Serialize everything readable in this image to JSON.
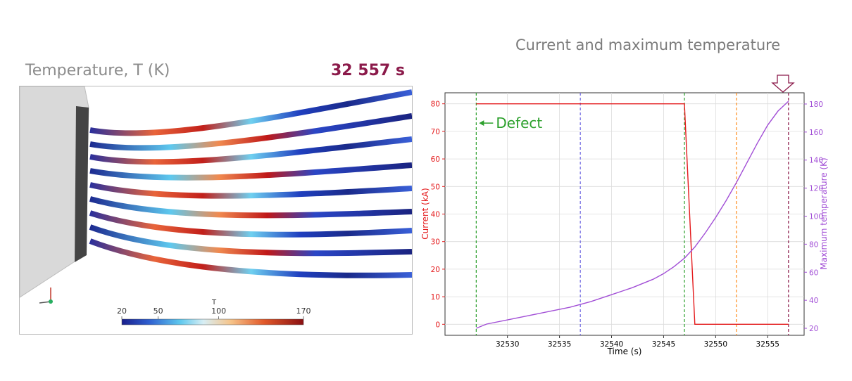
{
  "simulation": {
    "title": "Temperature, T (K)",
    "time_label": "32 557 s",
    "colorbar": {
      "label": "T",
      "ticks": [
        20,
        50,
        100,
        170
      ],
      "range": [
        20,
        170
      ],
      "colormap": "turbo-like (blue to red)"
    }
  },
  "chart_title": "Current and maximum temperature",
  "chart_data": {
    "type": "line",
    "title": "Current and maximum temperature",
    "xlabel": "Time (s)",
    "ylabel_left": "Current (kA)",
    "ylabel_right": "Maximum temperature (K)",
    "xlim": [
      32524,
      32558.5
    ],
    "ylim_left": [
      -4,
      84
    ],
    "ylim_right": [
      15,
      188
    ],
    "xticks": [
      32530,
      32535,
      32540,
      32545,
      32550,
      32555
    ],
    "yticks_left": [
      0,
      10,
      20,
      30,
      40,
      50,
      60,
      70,
      80
    ],
    "yticks_right": [
      20,
      40,
      60,
      80,
      100,
      120,
      140,
      160,
      180
    ],
    "grid": true,
    "series": [
      {
        "name": "Current",
        "axis": "left",
        "color": "#e41a1c",
        "x": [
          32527,
          32547,
          32548,
          32557
        ],
        "y": [
          80,
          80,
          0,
          0
        ]
      },
      {
        "name": "Maximum temperature",
        "axis": "right",
        "color": "#a24fd6",
        "x": [
          32527,
          32528,
          32530,
          32532,
          32534,
          32536,
          32538,
          32540,
          32542,
          32544,
          32545,
          32546,
          32547,
          32548,
          32549,
          32550,
          32551,
          32552,
          32553,
          32554,
          32555,
          32556,
          32557
        ],
        "y": [
          20,
          23,
          26,
          29,
          32,
          35,
          39,
          44,
          49,
          55,
          59,
          64,
          70,
          78,
          88,
          99,
          111,
          124,
          138,
          152,
          165,
          175,
          182
        ]
      }
    ],
    "vlines": [
      {
        "x": 32527,
        "color": "#2ca02c"
      },
      {
        "x": 32537,
        "color": "#6b63e0"
      },
      {
        "x": 32547,
        "color": "#2ca02c"
      },
      {
        "x": 32552,
        "color": "#ff8c1a"
      },
      {
        "x": 32557,
        "color": "#8b1a4a"
      }
    ],
    "annotation": {
      "text": "Defect",
      "x": 32527,
      "y": 73,
      "color": "#2ca02c"
    }
  },
  "colors": {
    "accent_time": "#8b1a4a",
    "current": "#e41a1c",
    "temperature": "#a24fd6"
  }
}
